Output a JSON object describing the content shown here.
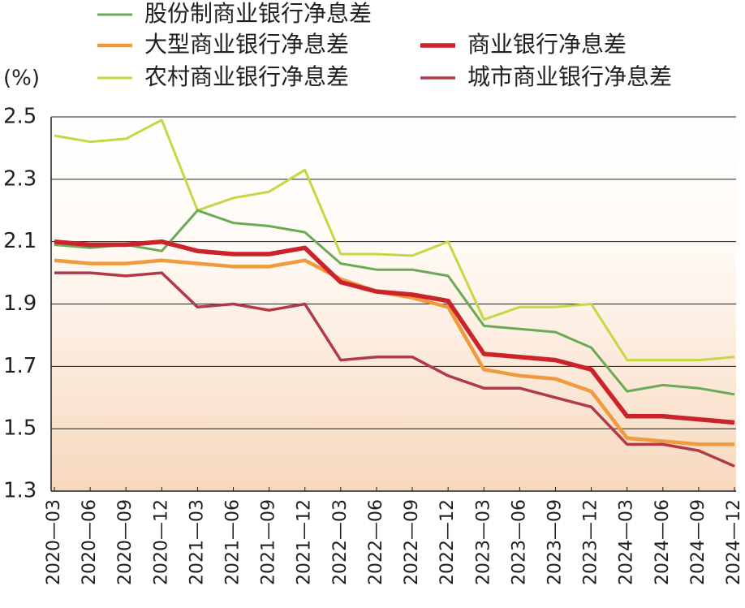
{
  "chart_data": {
    "type": "line",
    "y_axis_label": "(%)",
    "categories": [
      "2020—03",
      "2020—06",
      "2020—09",
      "2020—12",
      "2021—03",
      "2021—06",
      "2021—09",
      "2021—12",
      "2022—03",
      "2022—06",
      "2022—09",
      "2022—12",
      "2023—03",
      "2023—06",
      "2023—09",
      "2023—12",
      "2024—03",
      "2024—06",
      "2024—09",
      "2024—12"
    ],
    "series": [
      {
        "name": "股份制商业银行净息差",
        "color": "#6aaa55",
        "values": [
          2.09,
          2.08,
          2.09,
          2.07,
          2.2,
          2.16,
          2.15,
          2.13,
          2.03,
          2.01,
          2.01,
          1.99,
          1.83,
          1.82,
          1.81,
          1.76,
          1.62,
          1.64,
          1.63,
          1.61
        ]
      },
      {
        "name": "大型商业银行净息差",
        "color": "#ef9a3c",
        "values": [
          2.04,
          2.03,
          2.03,
          2.04,
          2.03,
          2.02,
          2.02,
          2.04,
          1.98,
          1.94,
          1.92,
          1.89,
          1.69,
          1.67,
          1.66,
          1.62,
          1.47,
          1.46,
          1.45,
          1.45
        ]
      },
      {
        "name": "商业银行净息差",
        "color": "#cc2229",
        "values": [
          2.1,
          2.09,
          2.09,
          2.1,
          2.07,
          2.06,
          2.06,
          2.08,
          1.97,
          1.94,
          1.93,
          1.91,
          1.74,
          1.73,
          1.72,
          1.69,
          1.54,
          1.54,
          1.53,
          1.52
        ]
      },
      {
        "name": "农村商业银行净息差",
        "color": "#c2d943",
        "values": [
          2.44,
          2.42,
          2.43,
          2.49,
          2.2,
          2.24,
          2.26,
          2.33,
          2.06,
          2.06,
          2.055,
          2.1,
          1.85,
          1.89,
          1.89,
          1.9,
          1.72,
          1.72,
          1.72,
          1.73
        ]
      },
      {
        "name": "城市商业银行净息差",
        "color": "#b1394a",
        "values": [
          2.0,
          2.0,
          1.99,
          2.0,
          1.89,
          1.9,
          1.88,
          1.9,
          1.72,
          1.73,
          1.73,
          1.67,
          1.63,
          1.63,
          1.6,
          1.57,
          1.45,
          1.45,
          1.43,
          1.38
        ]
      }
    ],
    "ylim": [
      1.3,
      2.5
    ],
    "yticks": [
      1.3,
      1.5,
      1.7,
      1.9,
      2.1,
      2.3,
      2.5
    ],
    "grid": true
  }
}
